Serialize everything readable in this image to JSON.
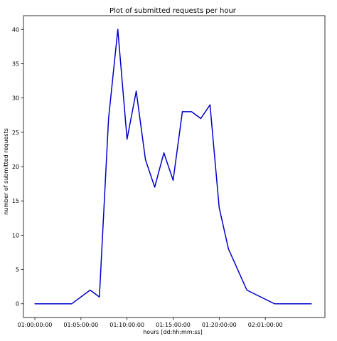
{
  "chart_data": {
    "type": "line",
    "title": "Plot of submitted requests per hour",
    "xlabel": "hours [dd:hh:mm:ss]",
    "ylabel": "number of submitted requests",
    "grid": false,
    "legend": "none",
    "x_tick_labels": [
      "01:00:00:00",
      "01:05:00:00",
      "01:10:00:00",
      "01:15:00:00",
      "01:20:00:00",
      "02:01:00:00"
    ],
    "y_ticks": [
      0,
      5,
      10,
      15,
      20,
      25,
      30,
      35,
      40
    ],
    "ylim": [
      -2,
      42
    ],
    "series": [
      {
        "color": "#0000cc",
        "points": [
          {
            "x": "01:00:00:00",
            "y": 0
          },
          {
            "x": "01:04:00:00",
            "y": 0
          },
          {
            "x": "01:06:00:00",
            "y": 2
          },
          {
            "x": "01:07:00:00",
            "y": 1
          },
          {
            "x": "01:08:00:00",
            "y": 27
          },
          {
            "x": "01:09:00:00",
            "y": 40
          },
          {
            "x": "01:10:00:00",
            "y": 24
          },
          {
            "x": "01:11:00:00",
            "y": 31
          },
          {
            "x": "01:12:00:00",
            "y": 21
          },
          {
            "x": "01:13:00:00",
            "y": 17
          },
          {
            "x": "01:14:00:00",
            "y": 22
          },
          {
            "x": "01:15:00:00",
            "y": 18
          },
          {
            "x": "01:16:00:00",
            "y": 28
          },
          {
            "x": "01:17:00:00",
            "y": 28
          },
          {
            "x": "01:18:00:00",
            "y": 27
          },
          {
            "x": "01:19:00:00",
            "y": 29
          },
          {
            "x": "01:20:00:00",
            "y": 14
          },
          {
            "x": "01:21:00:00",
            "y": 8
          },
          {
            "x": "01:23:00:00",
            "y": 2
          },
          {
            "x": "02:01:00:00",
            "y": 0
          },
          {
            "x": "02:05:00:00",
            "y": 0
          }
        ]
      }
    ]
  }
}
